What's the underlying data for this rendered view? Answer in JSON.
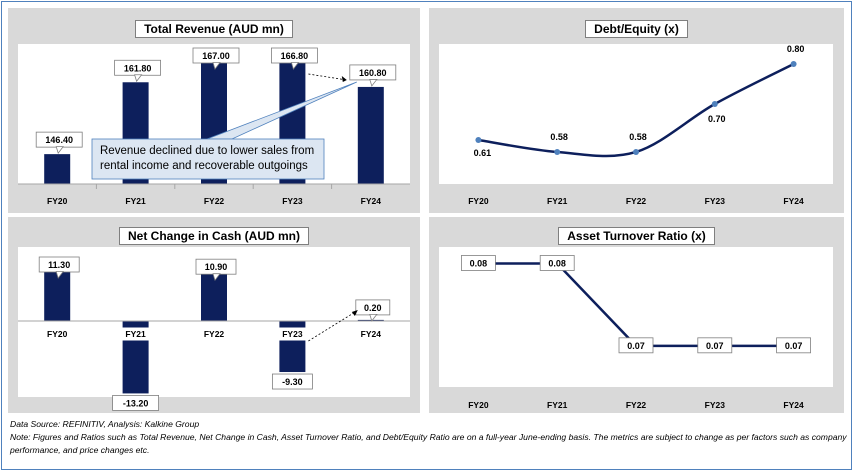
{
  "colors": {
    "bar": "#0d1f5c",
    "line": "#0d1f5c",
    "marker": "#4f81bd",
    "panel_bg": "#d9d9d9",
    "plot_bg": "#ffffff"
  },
  "chart_data": [
    {
      "id": "revenue",
      "type": "bar",
      "title": "Total Revenue (AUD mn)",
      "categories": [
        "FY20",
        "FY21",
        "FY22",
        "FY23",
        "FY24"
      ],
      "values": [
        146.4,
        161.8,
        167.0,
        166.8,
        160.8
      ],
      "labels": [
        "146.40",
        "161.80",
        "167.00",
        "166.80",
        "160.80"
      ],
      "ylim": [
        140,
        170
      ],
      "annotation": "Revenue declined due to lower sales from rental income and recoverable outgoings"
    },
    {
      "id": "debt_equity",
      "type": "line",
      "title": "Debt/Equity (x)",
      "categories": [
        "FY20",
        "FY21",
        "FY22",
        "FY23",
        "FY24"
      ],
      "values": [
        0.61,
        0.58,
        0.58,
        0.7,
        0.8
      ],
      "labels": [
        "0.61",
        "0.58",
        "0.58",
        "0.70",
        "0.80"
      ],
      "ylim": [
        0.5,
        0.85
      ]
    },
    {
      "id": "net_cash",
      "type": "bar",
      "title": "Net Change in Cash (AUD mn)",
      "categories": [
        "FY20",
        "FY21",
        "FY22",
        "FY23",
        "FY24"
      ],
      "values": [
        11.3,
        -13.2,
        10.9,
        -9.3,
        0.2
      ],
      "labels": [
        "11.30",
        "-13.20",
        "10.90",
        "-9.30",
        "0.20"
      ],
      "ylim": [
        -15,
        12
      ]
    },
    {
      "id": "asset_turnover",
      "type": "line",
      "title": "Asset Turnover Ratio (x)",
      "categories": [
        "FY20",
        "FY21",
        "FY22",
        "FY23",
        "FY24"
      ],
      "values": [
        0.08,
        0.08,
        0.07,
        0.07,
        0.07
      ],
      "labels": [
        "0.08",
        "0.08",
        "0.07",
        "0.07",
        "0.07"
      ],
      "ylim": [
        0.065,
        0.082
      ]
    }
  ],
  "footer": {
    "source": "Data Source: REFINITIV, Analysis: Kalkine Group",
    "note": "Note: Figures and Ratios such as Total Revenue, Net Change in Cash, Asset Turnover Ratio, and Debt/Equity Ratio  are on a full-year June-ending basis. The metrics are subject to change as per factors such as company performance, and price changes etc."
  }
}
